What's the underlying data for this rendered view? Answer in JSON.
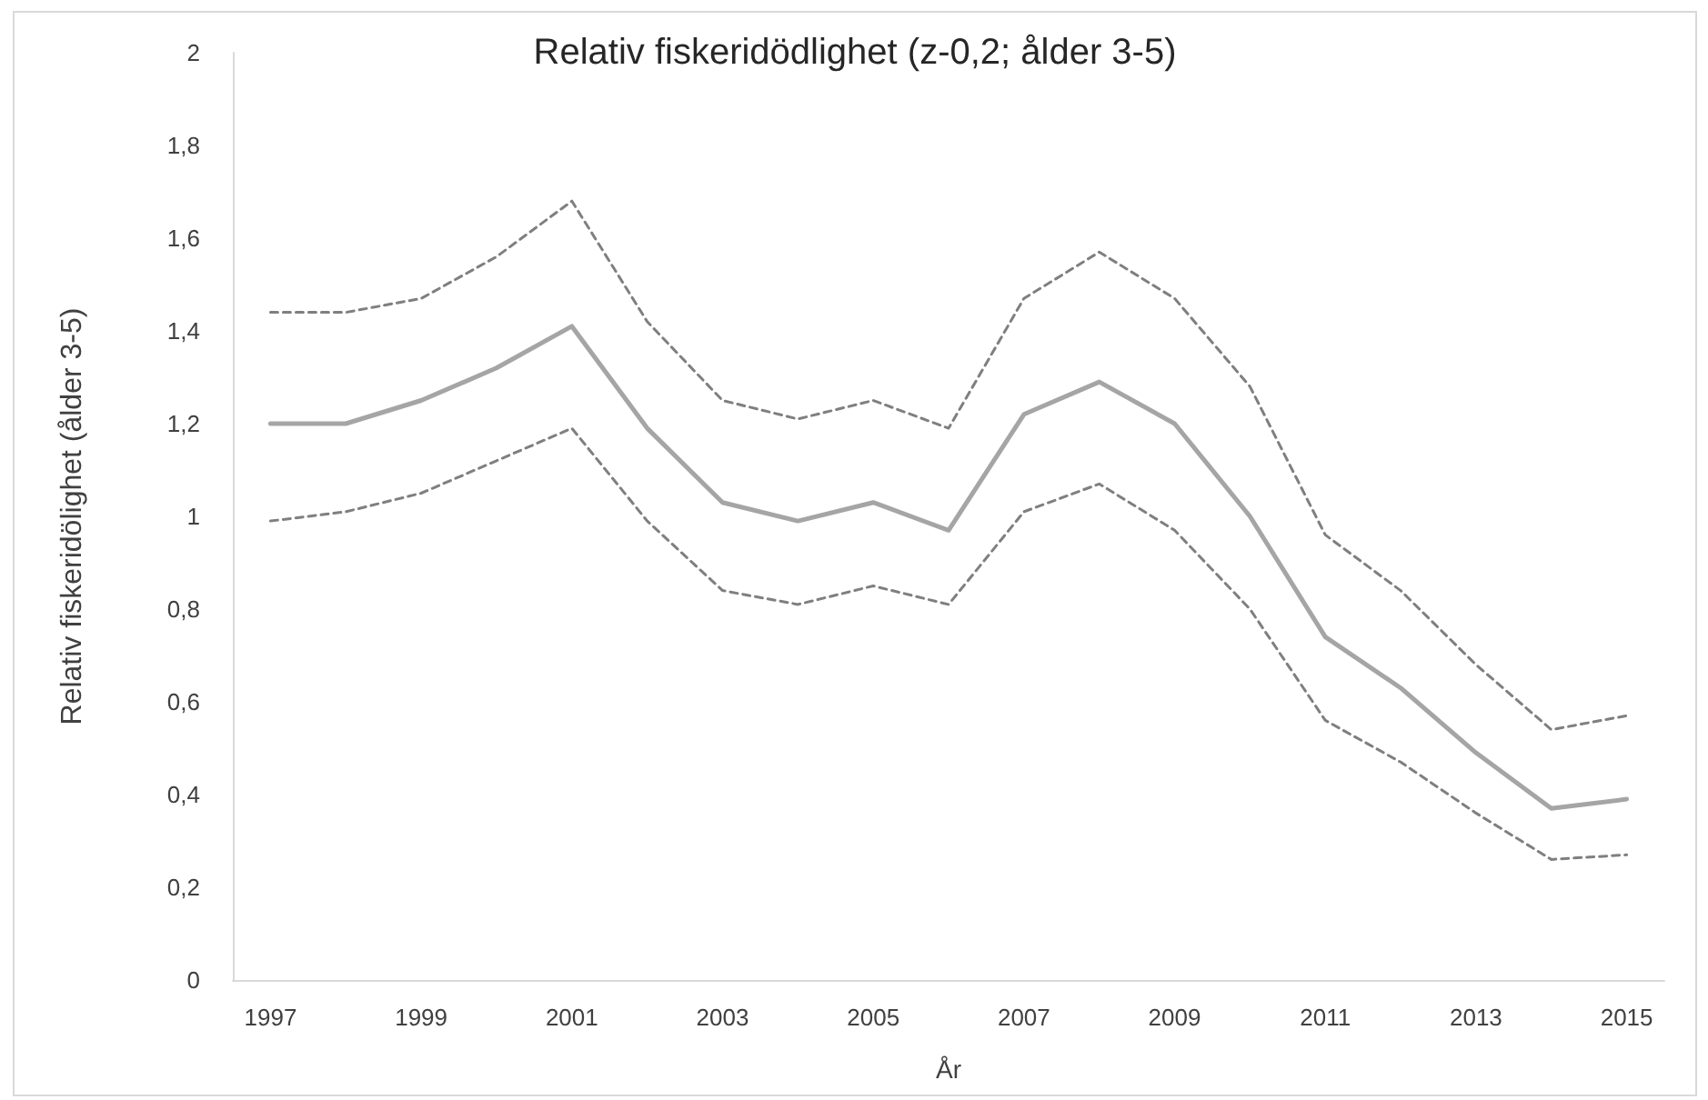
{
  "chart_data": {
    "type": "line",
    "title": "Relativ fiskeridödlighet (z-0,2; ålder 3-5)",
    "xlabel": "År",
    "ylabel": "Relativ fiskeridölighet (ålder 3-5)",
    "categories": [
      "1997",
      null,
      "1999",
      null,
      "2001",
      null,
      "2003",
      null,
      "2005",
      null,
      "2007",
      null,
      "2009",
      null,
      "2011",
      null,
      "2013",
      null,
      "2015"
    ],
    "series": [
      {
        "color": "#7f7f7f",
        "line_style": "dashed",
        "values": [
          1.44,
          1.44,
          1.47,
          1.56,
          1.68,
          1.42,
          1.25,
          1.21,
          1.25,
          1.19,
          1.47,
          1.57,
          1.47,
          1.28,
          0.96,
          0.84,
          0.68,
          0.54,
          0.57
        ]
      },
      {
        "color": "#a5a5a5",
        "line_style": "solid",
        "values": [
          1.2,
          1.2,
          1.25,
          1.32,
          1.41,
          1.19,
          1.03,
          0.99,
          1.03,
          0.97,
          1.22,
          1.29,
          1.2,
          1.0,
          0.74,
          0.63,
          0.49,
          0.37,
          0.39
        ]
      },
      {
        "color": "#7f7f7f",
        "line_style": "dashed",
        "values": [
          0.99,
          1.01,
          1.05,
          1.12,
          1.19,
          0.99,
          0.84,
          0.81,
          0.85,
          0.81,
          1.01,
          1.07,
          0.97,
          0.8,
          0.56,
          0.47,
          0.36,
          0.26,
          0.27
        ]
      }
    ],
    "ylim": [
      0,
      2
    ],
    "yticks": [
      0,
      {
        "value": 0.2,
        "label": "0,2"
      },
      {
        "value": 0.4,
        "label": "0,4"
      },
      {
        "value": 0.6,
        "label": "0,6"
      },
      {
        "value": 0.8,
        "label": "0,8"
      },
      1,
      {
        "value": 1.2,
        "label": "1,2"
      },
      {
        "value": 1.4,
        "label": "1,4"
      },
      {
        "value": 1.6,
        "label": "1,6"
      },
      {
        "value": 1.8,
        "label": "1,8"
      },
      2
    ],
    "grid": false,
    "marker": "none"
  }
}
